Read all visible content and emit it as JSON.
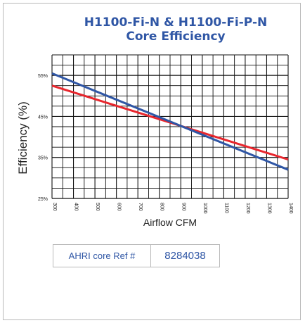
{
  "title_line1": "H1100-Fi-N & H1100-Fi-P-N",
  "title_line2": "Core Efficiency",
  "reference": {
    "label": "AHRI core Ref #",
    "value": "8284038"
  },
  "colors": {
    "title": "#2f56a5",
    "series_blue": "#2f56a5",
    "series_red": "#e8262d",
    "grid": "#111111"
  },
  "chart_data": {
    "type": "line",
    "title": "H1100-Fi-N & H1100-Fi-P-N Core Efficiency",
    "xlabel": "Airflow CFM",
    "ylabel": "Efficiency (%)",
    "xlim": [
      300,
      1400
    ],
    "ylim": [
      25,
      60
    ],
    "x_ticks": [
      300,
      400,
      500,
      600,
      700,
      800,
      900,
      1000,
      1100,
      1200,
      1300,
      1400
    ],
    "y_ticks": [
      {
        "value": 25,
        "label": "25%"
      },
      {
        "value": 35,
        "label": "35%"
      },
      {
        "value": 45,
        "label": "45%"
      },
      {
        "value": 55,
        "label": "55%"
      }
    ],
    "grid": true,
    "series": [
      {
        "color": "#2f56a5",
        "x": [
          300,
          1400
        ],
        "y": [
          55.5,
          32.0
        ]
      },
      {
        "color": "#e8262d",
        "x": [
          300,
          1400
        ],
        "y": [
          52.5,
          34.5
        ]
      }
    ]
  }
}
